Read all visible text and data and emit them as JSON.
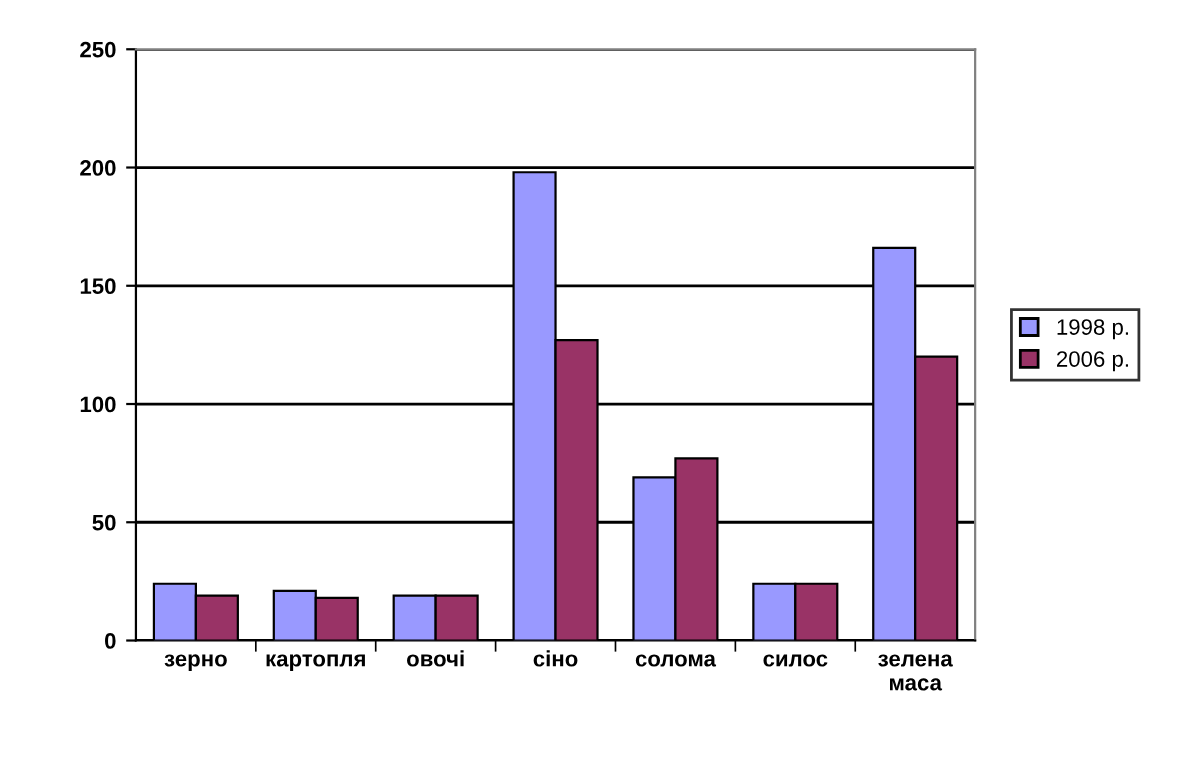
{
  "chart_data": {
    "type": "bar",
    "categories": [
      "зерно",
      "картопля",
      "овочі",
      "сіно",
      "солома",
      "силос",
      "зелена\nмаса"
    ],
    "series": [
      {
        "name": "1998 р.",
        "color": "#9999ff",
        "values": [
          24,
          21,
          19,
          198,
          69,
          24,
          166
        ]
      },
      {
        "name": "2006 р.",
        "color": "#993366",
        "values": [
          19,
          18,
          19,
          127,
          77,
          24,
          120
        ]
      }
    ],
    "ylim": [
      0,
      250
    ],
    "yticks": [
      0,
      50,
      100,
      150,
      200,
      250
    ],
    "grid": "y",
    "legend": "right"
  }
}
